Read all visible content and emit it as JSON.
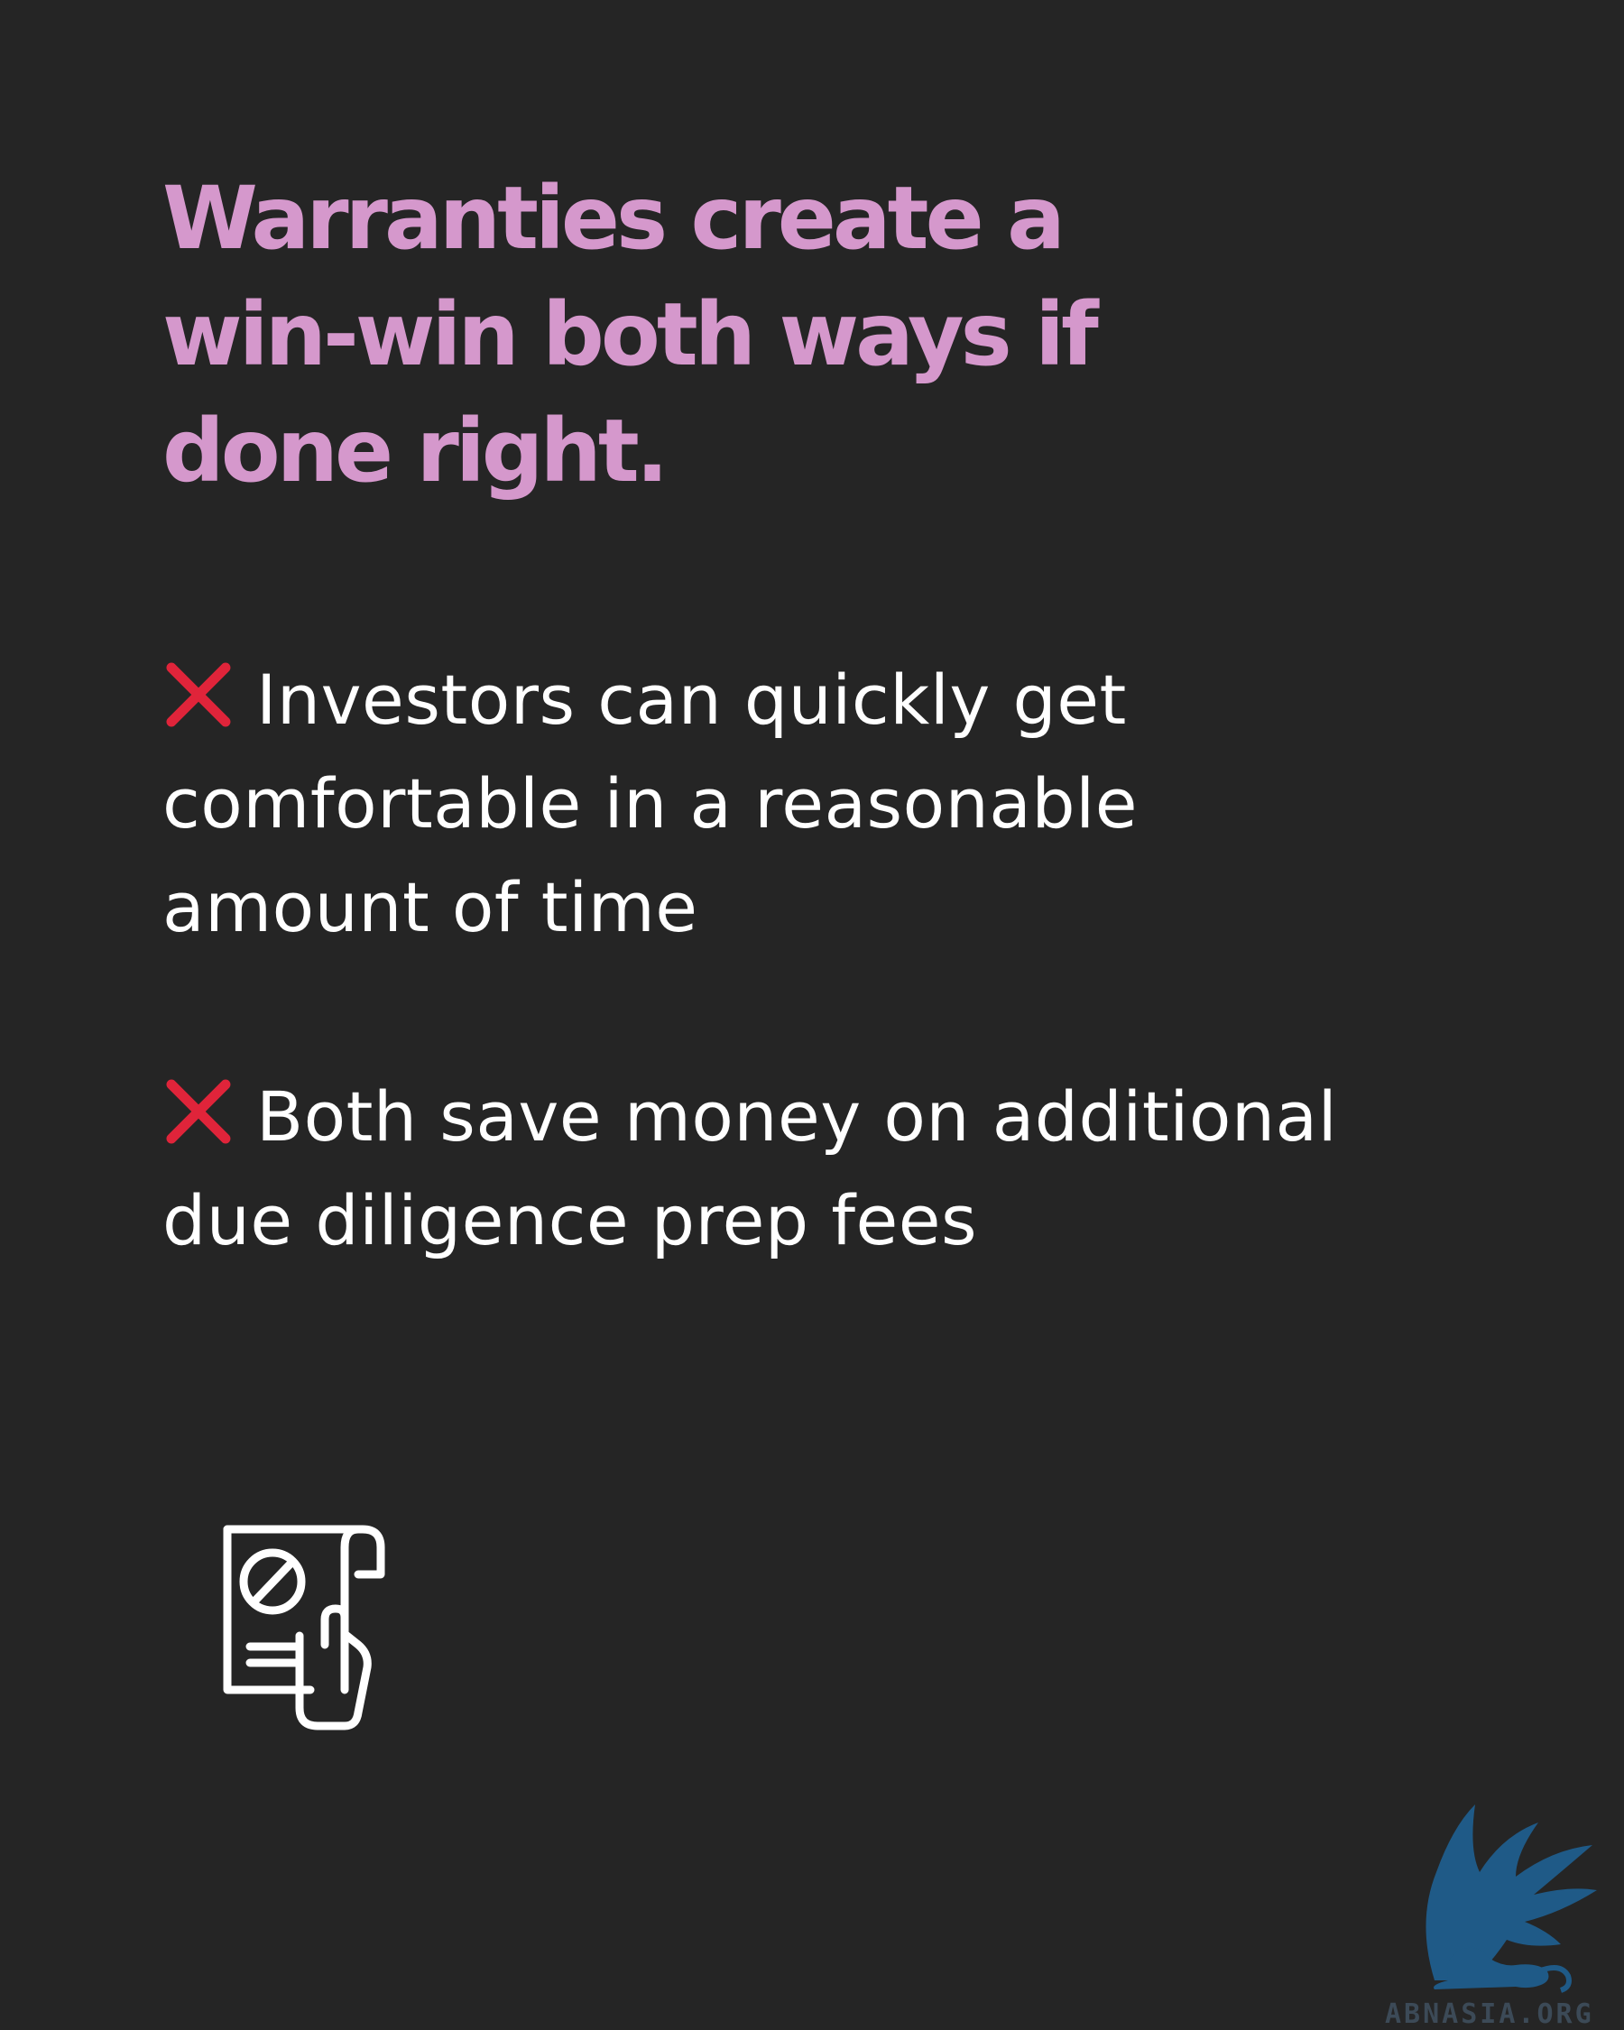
{
  "headline": {
    "lines": [
      "Warranties create a",
      "win-win both ways if",
      "done right."
    ],
    "color": "#d598cc"
  },
  "points": [
    {
      "icon": "cross-mark-icon",
      "lines": [
        "Investors can quickly get",
        "comfortable in a reasonable",
        "amount of time"
      ]
    },
    {
      "icon": "cross-mark-icon",
      "lines": [
        "Both save money on additional",
        "due diligence prep fees"
      ]
    }
  ],
  "illustration": {
    "icon": "document-with-prohibited-sign-in-hand-icon"
  },
  "watermark": {
    "text": "ABNASIA.ORG",
    "icon": "winged-griffin-logo-icon",
    "color": "#1f5a87"
  },
  "colors": {
    "background": "#252525",
    "text": "#ffffff",
    "cross": "#e0243a",
    "accent": "#d598cc"
  }
}
